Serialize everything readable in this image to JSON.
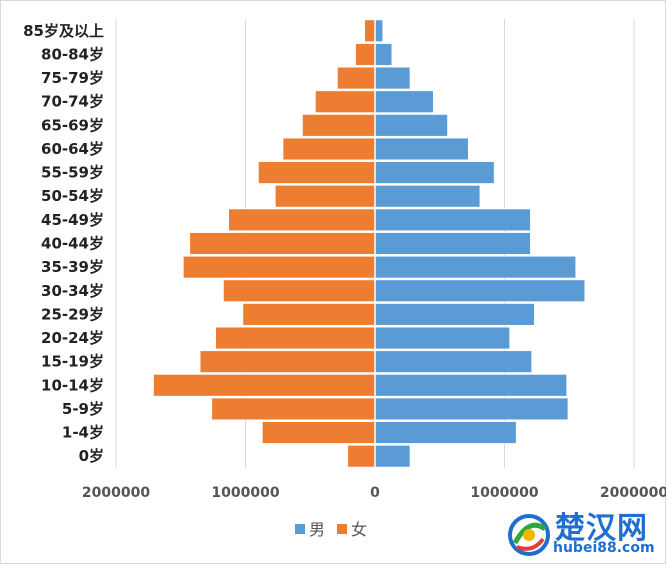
{
  "chart_data": {
    "type": "bar",
    "orientation": "horizontal",
    "categories": [
      "85岁及以上",
      "80-84岁",
      "75-79岁",
      "70-74岁",
      "65-69岁",
      "60-64岁",
      "55-59岁",
      "50-54岁",
      "45-49岁",
      "40-44岁",
      "35-39岁",
      "30-34岁",
      "25-29岁",
      "20-24岁",
      "15-19岁",
      "10-14岁",
      "5-9岁",
      "1-4岁",
      "0岁"
    ],
    "series": [
      {
        "name": "男",
        "color": "#5b9bd5",
        "values": [
          60000,
          130000,
          270000,
          450000,
          560000,
          720000,
          920000,
          810000,
          1200000,
          1200000,
          1550000,
          1620000,
          1230000,
          1040000,
          1210000,
          1480000,
          1490000,
          1090000,
          270000
        ]
      },
      {
        "name": "女",
        "color": "#ed7d31",
        "values": [
          80000,
          150000,
          290000,
          460000,
          560000,
          710000,
          900000,
          770000,
          1130000,
          1430000,
          1480000,
          1170000,
          1020000,
          1230000,
          1350000,
          1710000,
          1260000,
          870000,
          210000
        ]
      }
    ],
    "xlim": [
      -2000000,
      2000000
    ],
    "xticks": [
      -2000000,
      -1000000,
      0,
      1000000,
      2000000
    ],
    "xtick_labels": [
      "2000000",
      "1000000",
      "0",
      "1000000",
      "2000000"
    ],
    "grid": "vertical",
    "legend_position": "bottom"
  },
  "watermark": {
    "title": "楚汉网",
    "url": "hubei88.com"
  }
}
